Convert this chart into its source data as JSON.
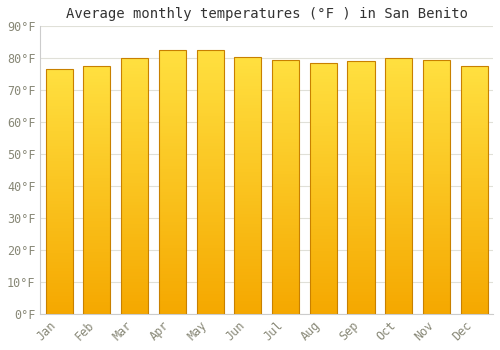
{
  "title": "Average monthly temperatures (°F ) in San Benito",
  "months": [
    "Jan",
    "Feb",
    "Mar",
    "Apr",
    "May",
    "Jun",
    "Jul",
    "Aug",
    "Sep",
    "Oct",
    "Nov",
    "Dec"
  ],
  "values": [
    76.5,
    77.5,
    80.0,
    82.5,
    82.5,
    80.5,
    79.5,
    78.5,
    79.0,
    80.0,
    79.5,
    77.5
  ],
  "bar_color_bottom": "#F5A800",
  "bar_color_top": "#FFE040",
  "bar_edge_color": "#C88000",
  "background_color": "#FFFFFF",
  "grid_color": "#E0E0D8",
  "ylim": [
    0,
    90
  ],
  "yticks": [
    0,
    10,
    20,
    30,
    40,
    50,
    60,
    70,
    80,
    90
  ],
  "ytick_labels": [
    "0°F",
    "10°F",
    "20°F",
    "30°F",
    "40°F",
    "50°F",
    "60°F",
    "70°F",
    "80°F",
    "90°F"
  ],
  "title_fontsize": 10,
  "tick_fontsize": 8.5,
  "tick_color": "#888877",
  "spine_color": "#CCCCCC"
}
